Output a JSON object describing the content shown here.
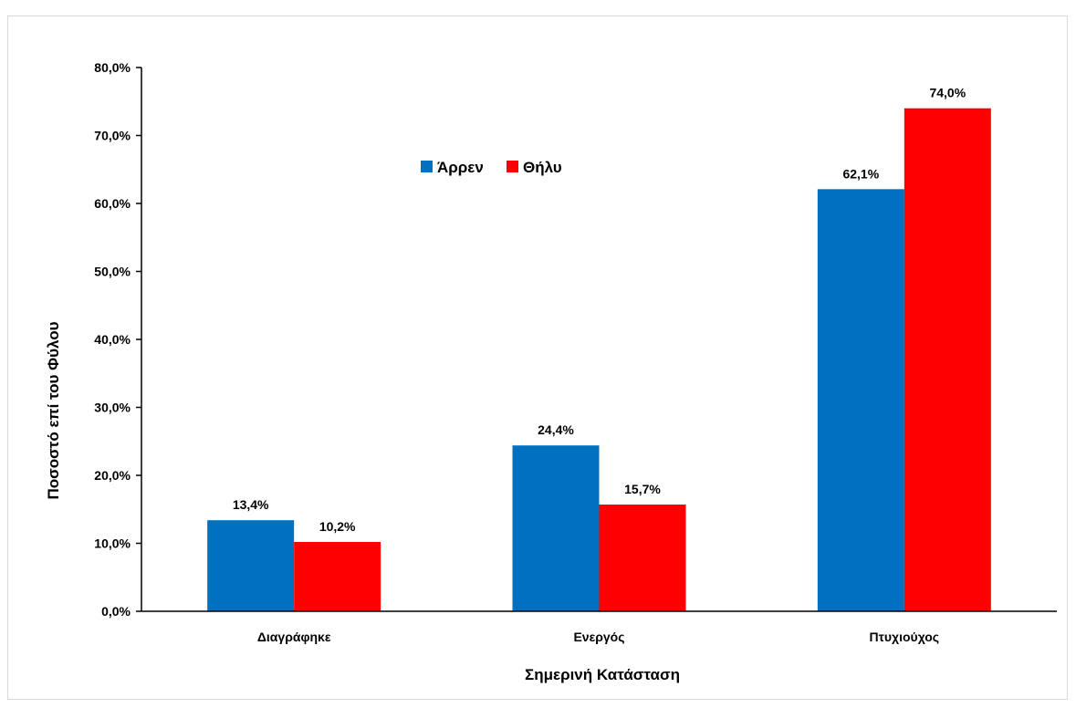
{
  "chart_data": {
    "type": "bar",
    "title": "",
    "xlabel": "Σημερινή Κατάσταση",
    "ylabel": "Ποσοστό επί του Φύλου",
    "categories": [
      "Διαγράφηκε",
      "Ενεργός",
      "Πτυχιούχος"
    ],
    "series": [
      {
        "name": "Άρρεν",
        "color": "#0070c0",
        "values": [
          13.4,
          24.4,
          62.1
        ],
        "labels": [
          "13,4%",
          "24,4%",
          "62,1%"
        ]
      },
      {
        "name": "Θήλυ",
        "color": "#ff0000",
        "values": [
          10.2,
          15.7,
          74.0
        ],
        "labels": [
          "10,2%",
          "15,7%",
          "74,0%"
        ]
      }
    ],
    "ylim": [
      0,
      80
    ],
    "yticks": [
      0,
      10,
      20,
      30,
      40,
      50,
      60,
      70,
      80
    ],
    "ytick_labels": [
      "0,0%",
      "10,0%",
      "20,0%",
      "30,0%",
      "40,0%",
      "50,0%",
      "60,0%",
      "70,0%",
      "80,0%"
    ],
    "grid": false,
    "legend_position": "top-center"
  }
}
